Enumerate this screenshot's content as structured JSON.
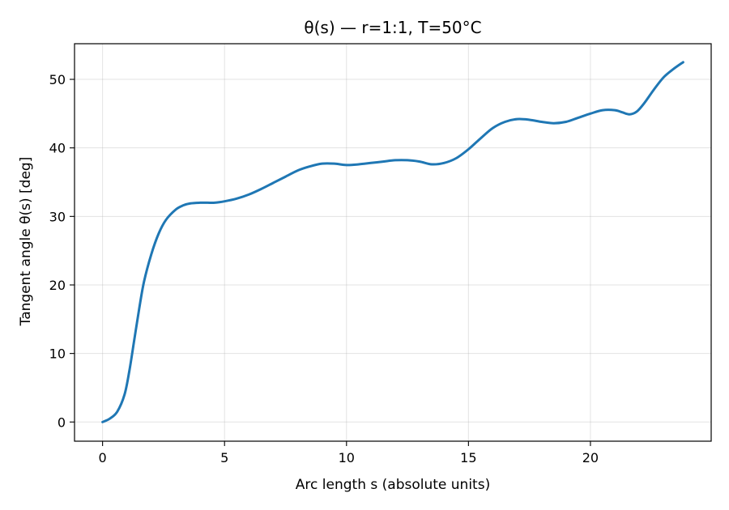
{
  "chart_data": {
    "type": "line",
    "title": "θ(s) — r=1:1, T=50°C",
    "xlabel": "Arc length s (absolute units)",
    "ylabel": "Tangent angle θ(s) [deg]",
    "xlim": [
      -1.15,
      24.95
    ],
    "ylim": [
      -2.8,
      55.2
    ],
    "xticks": [
      0,
      5,
      10,
      15,
      20
    ],
    "yticks": [
      0,
      10,
      20,
      30,
      40,
      50
    ],
    "grid": true,
    "series": [
      {
        "color": "#1f77b4",
        "x": [
          0,
          0.3,
          0.6,
          0.9,
          1.1,
          1.3,
          1.5,
          1.7,
          2.0,
          2.3,
          2.6,
          3.0,
          3.3,
          3.6,
          4.0,
          4.3,
          4.6,
          5.0,
          5.5,
          6.0,
          6.5,
          7.0,
          7.5,
          8.0,
          8.5,
          9.0,
          9.5,
          10.0,
          10.5,
          11.0,
          11.5,
          12.0,
          12.5,
          13.0,
          13.5,
          14.0,
          14.5,
          15.0,
          15.5,
          16.0,
          16.5,
          17.0,
          17.5,
          18.0,
          18.5,
          19.0,
          19.5,
          20.0,
          20.5,
          21.0,
          21.3,
          21.6,
          21.9,
          22.2,
          22.6,
          23.0,
          23.4,
          23.8
        ],
        "y": [
          0,
          0.5,
          1.5,
          4,
          7.5,
          12,
          16.5,
          20.5,
          24.5,
          27.5,
          29.5,
          31.0,
          31.6,
          31.9,
          32.0,
          32.0,
          32.0,
          32.2,
          32.6,
          33.2,
          34.0,
          34.9,
          35.8,
          36.7,
          37.3,
          37.7,
          37.7,
          37.5,
          37.6,
          37.8,
          38.0,
          38.2,
          38.2,
          38.0,
          37.6,
          37.8,
          38.5,
          39.8,
          41.4,
          42.9,
          43.8,
          44.2,
          44.1,
          43.8,
          43.6,
          43.8,
          44.4,
          45.0,
          45.5,
          45.5,
          45.2,
          44.9,
          45.3,
          46.5,
          48.5,
          50.3,
          51.5,
          52.5
        ]
      }
    ]
  }
}
